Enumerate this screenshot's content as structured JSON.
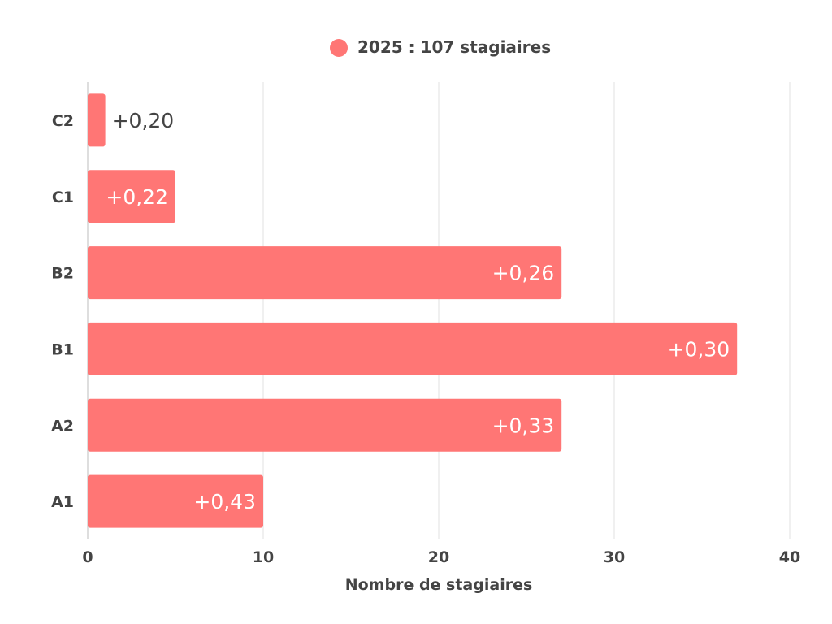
{
  "chart_data": {
    "type": "bar",
    "orientation": "horizontal",
    "categories": [
      "C2",
      "C1",
      "B2",
      "B1",
      "A2",
      "A1"
    ],
    "series": [
      {
        "name": "2025 : 107 stagiaires",
        "values": [
          1,
          5,
          27,
          37,
          27,
          10
        ],
        "labels": [
          "+0,20",
          "+0,22",
          "+0,26",
          "+0,30",
          "+0,33",
          "+0,43"
        ]
      }
    ],
    "xlabel": "Nombre de stagiaires",
    "ylabel": "",
    "xlim": [
      0,
      40
    ],
    "xticks": [
      "0",
      "10",
      "20",
      "30",
      "40"
    ],
    "grid": true,
    "legend_position": "top-center",
    "colors": {
      "bar": "#ff7675",
      "grid": "#e0e0e0",
      "axis": "#bdbdbd",
      "text": "#444444",
      "label_inside": "#ffffff",
      "label_outside": "#444444"
    }
  }
}
